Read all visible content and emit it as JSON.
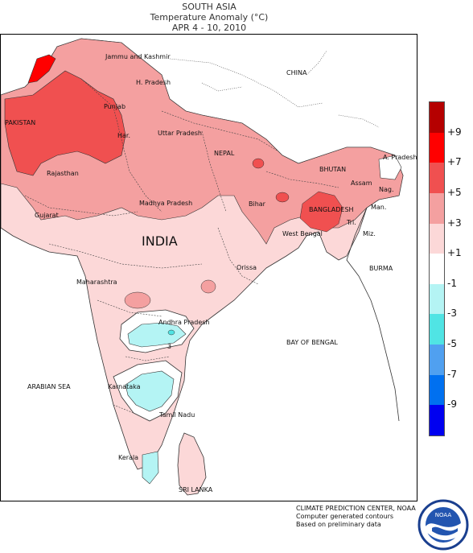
{
  "header": {
    "region": "SOUTH ASIA",
    "product": "Temperature Anomaly (°C)",
    "period": "APR 4 - 10, 2010"
  },
  "legend": {
    "bins": [
      {
        "label": "+9",
        "color": "#b50000"
      },
      {
        "label": "+7",
        "color": "#ff0000"
      },
      {
        "label": "+5",
        "color": "#f05050"
      },
      {
        "label": "+3",
        "color": "#f4a0a0"
      },
      {
        "label": "+1",
        "color": "#fcd8d8"
      },
      {
        "label": "-1",
        "color": "#ffffff"
      },
      {
        "label": "-3",
        "color": "#b4f4f4"
      },
      {
        "label": "-5",
        "color": "#50e4e4"
      },
      {
        "label": "-7",
        "color": "#50a0f0"
      },
      {
        "label": "-9",
        "color": "#0070f0"
      },
      {
        "label": "",
        "color": "#0000f0"
      }
    ]
  },
  "map": {
    "labels": {
      "china": "CHINA",
      "pakistan": "PAKISTAN",
      "india": "INDIA",
      "jammu_kashmir": "Jammu and Kashmir",
      "h_pradesh": "H. Pradesh",
      "punjab": "Punjab",
      "haryana": "Har.",
      "rajasthan": "Rajasthan",
      "uttar_pradesh": "Uttar Pradesh",
      "nepal": "NEPAL",
      "bhutan": "BHUTAN",
      "arunachal": "A. Pradesh",
      "assam": "Assam",
      "nagaland": "Nag.",
      "manipur": "Man.",
      "mizoram": "Miz.",
      "tripura": "Tri.",
      "bihar": "Bihar",
      "bangladesh": "BANGLADESH",
      "west_bengal": "West Bengal",
      "gujarat": "Gujarat",
      "madhya_pradesh": "Madhya Pradesh",
      "orissa": "Orissa",
      "maharashtra": "Maharashtra",
      "andhra_pradesh": "Andhra Pradesh",
      "karnataka": "Karnataka",
      "tamil_nadu": "Tamil Nadu",
      "kerala": "Kerala",
      "sri_lanka": "SRI LANKA",
      "burma": "BURMA",
      "arabian_sea": "ARABIAN SEA",
      "bay_of_bengal": "BAY OF BENGAL"
    },
    "contour_labels": {
      "andhra_low": "3"
    }
  },
  "credit": {
    "line1": "CLIMATE PREDICTION CENTER, NOAA",
    "line2": "Computer generated contours",
    "line3": "Based on preliminary data"
  },
  "logo": {
    "text": "NOAA",
    "ring_text": "NATIONAL OCEANIC AND ATMOSPHERIC ADMINISTRATION · U.S. DEPARTMENT OF COMMERCE"
  }
}
